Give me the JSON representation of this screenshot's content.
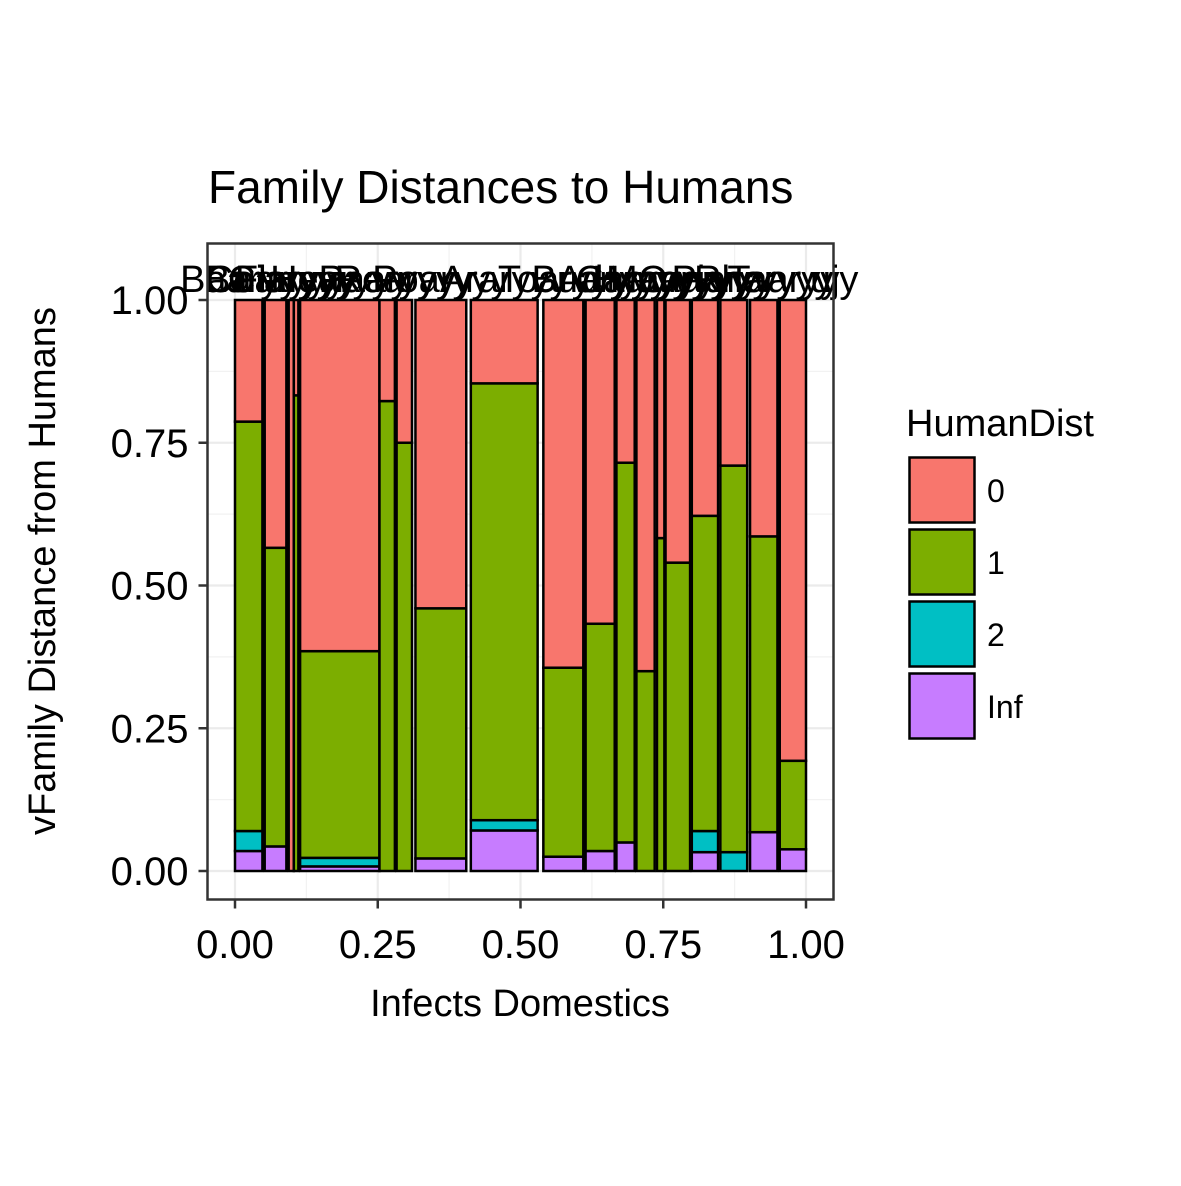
{
  "chart_data": {
    "type": "bar",
    "subtype": "mosaic-stacked-proportion",
    "title": "Family Distances to Humans",
    "xlabel": "Infects Domestics",
    "ylabel": "vFamily Distance from Humans",
    "xlim": [
      0,
      1
    ],
    "ylim": [
      0,
      1
    ],
    "x_ticks": [
      "0.00",
      "0.25",
      "0.50",
      "0.75",
      "1.00"
    ],
    "y_ticks": [
      "0.00",
      "0.25",
      "0.50",
      "0.75",
      "1.00"
    ],
    "grid": true,
    "legend": {
      "title": "HumanDist",
      "position": "right",
      "entries": [
        {
          "label": "0",
          "color": "#F8766D"
        },
        {
          "label": "1",
          "color": "#7CAE00"
        },
        {
          "label": "2",
          "color": "#00BFC4"
        },
        {
          "label": "Inf",
          "color": "#C77CFF"
        }
      ]
    },
    "series_order": [
      "Inf",
      "2",
      "1",
      "0"
    ],
    "bars": [
      {
        "x0": 0.0,
        "x1": 0.048,
        "values": {
          "Inf": 0.035,
          "2": 0.035,
          "1": 0.717,
          "0": 0.213
        }
      },
      {
        "x0": 0.052,
        "x1": 0.09,
        "values": {
          "Inf": 0.043,
          "2": 0.0,
          "1": 0.523,
          "0": 0.434
        }
      },
      {
        "x0": 0.094,
        "x1": 0.103,
        "values": {
          "Inf": 0.0,
          "2": 0.0,
          "1": 0.0,
          "0": 1.0
        }
      },
      {
        "x0": 0.103,
        "x1": 0.111,
        "values": {
          "Inf": 0.0,
          "2": 0.0,
          "1": 0.833,
          "0": 0.167
        }
      },
      {
        "x0": 0.114,
        "x1": 0.253,
        "values": {
          "Inf": 0.008,
          "2": 0.015,
          "1": 0.362,
          "0": 0.615
        }
      },
      {
        "x0": 0.253,
        "x1": 0.28,
        "values": {
          "Inf": 0.0,
          "2": 0.0,
          "1": 0.823,
          "0": 0.177
        }
      },
      {
        "x0": 0.283,
        "x1": 0.31,
        "values": {
          "Inf": 0.0,
          "2": 0.0,
          "1": 0.75,
          "0": 0.25
        }
      },
      {
        "x0": 0.316,
        "x1": 0.405,
        "values": {
          "Inf": 0.022,
          "2": 0.0,
          "1": 0.438,
          "0": 0.54
        }
      },
      {
        "x0": 0.413,
        "x1": 0.53,
        "values": {
          "Inf": 0.071,
          "2": 0.018,
          "1": 0.765,
          "0": 0.146
        }
      },
      {
        "x0": 0.54,
        "x1": 0.61,
        "values": {
          "Inf": 0.025,
          "2": 0.0,
          "1": 0.331,
          "0": 0.644
        }
      },
      {
        "x0": 0.614,
        "x1": 0.665,
        "values": {
          "Inf": 0.035,
          "2": 0.0,
          "1": 0.398,
          "0": 0.567
        }
      },
      {
        "x0": 0.668,
        "x1": 0.7,
        "values": {
          "Inf": 0.05,
          "2": 0.0,
          "1": 0.665,
          "0": 0.285
        }
      },
      {
        "x0": 0.703,
        "x1": 0.735,
        "values": {
          "Inf": 0.0,
          "2": 0.0,
          "1": 0.35,
          "0": 0.65
        }
      },
      {
        "x0": 0.739,
        "x1": 0.752,
        "values": {
          "Inf": 0.0,
          "2": 0.0,
          "1": 0.583,
          "0": 0.417
        }
      },
      {
        "x0": 0.754,
        "x1": 0.797,
        "values": {
          "Inf": 0.0,
          "2": 0.0,
          "1": 0.54,
          "0": 0.46
        }
      },
      {
        "x0": 0.8,
        "x1": 0.846,
        "values": {
          "Inf": 0.033,
          "2": 0.037,
          "1": 0.552,
          "0": 0.378
        }
      },
      {
        "x0": 0.85,
        "x1": 0.897,
        "values": {
          "Inf": 0.0,
          "2": 0.033,
          "1": 0.677,
          "0": 0.29
        }
      },
      {
        "x0": 0.902,
        "x1": 0.95,
        "values": {
          "Inf": 0.068,
          "2": 0.0,
          "1": 0.518,
          "0": 0.414
        }
      },
      {
        "x0": 0.954,
        "x1": 1.0,
        "values": {
          "Inf": 0.038,
          "2": 0.0,
          "1": 0.155,
          "0": 0.807
        }
      }
    ]
  }
}
